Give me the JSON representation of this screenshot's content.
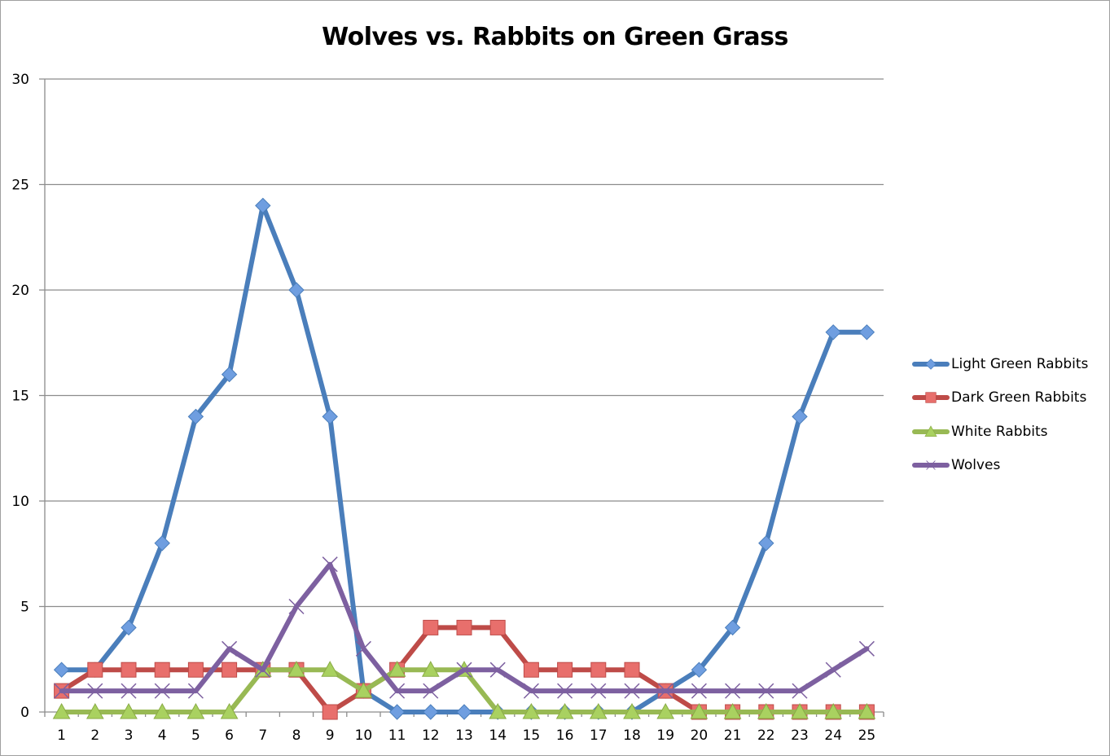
{
  "chart_data": {
    "type": "line",
    "title": "Wolves vs. Rabbits on Green Grass",
    "xlabel": "",
    "ylabel": "",
    "ylim": [
      0,
      30
    ],
    "yticks": [
      0,
      5,
      10,
      15,
      20,
      25,
      30
    ],
    "grid": true,
    "legend_position": "right",
    "x": [
      1,
      2,
      3,
      4,
      5,
      6,
      7,
      8,
      9,
      10,
      11,
      12,
      13,
      14,
      15,
      16,
      17,
      18,
      19,
      20,
      21,
      22,
      23,
      24,
      25
    ],
    "series": [
      {
        "name": "Light Green Rabbits",
        "color": "#4a7ebb",
        "marker": "diamond",
        "marker_fill": "#6f9ee0",
        "values": [
          2,
          2,
          4,
          8,
          14,
          16,
          24,
          20,
          14,
          1,
          0,
          0,
          0,
          0,
          0,
          0,
          0,
          0,
          1,
          2,
          4,
          8,
          14,
          18,
          18
        ]
      },
      {
        "name": "Dark Green Rabbits",
        "color": "#be4b48",
        "marker": "square",
        "marker_fill": "#e86f6c",
        "values": [
          1,
          2,
          2,
          2,
          2,
          2,
          2,
          2,
          0,
          1,
          2,
          4,
          4,
          4,
          2,
          2,
          2,
          2,
          1,
          0,
          0,
          0,
          0,
          0,
          0
        ]
      },
      {
        "name": "White Rabbits",
        "color": "#98b954",
        "marker": "triangle",
        "marker_fill": "#a9d160",
        "values": [
          0,
          0,
          0,
          0,
          0,
          0,
          2,
          2,
          2,
          1,
          2,
          2,
          2,
          0,
          0,
          0,
          0,
          0,
          0,
          0,
          0,
          0,
          0,
          0,
          0
        ]
      },
      {
        "name": "Wolves",
        "color": "#7d60a0",
        "marker": "x",
        "marker_fill": "#7d60a0",
        "values": [
          1,
          1,
          1,
          1,
          1,
          3,
          2,
          5,
          7,
          3,
          1,
          1,
          2,
          2,
          1,
          1,
          1,
          1,
          1,
          1,
          1,
          1,
          1,
          2,
          3
        ]
      }
    ]
  }
}
